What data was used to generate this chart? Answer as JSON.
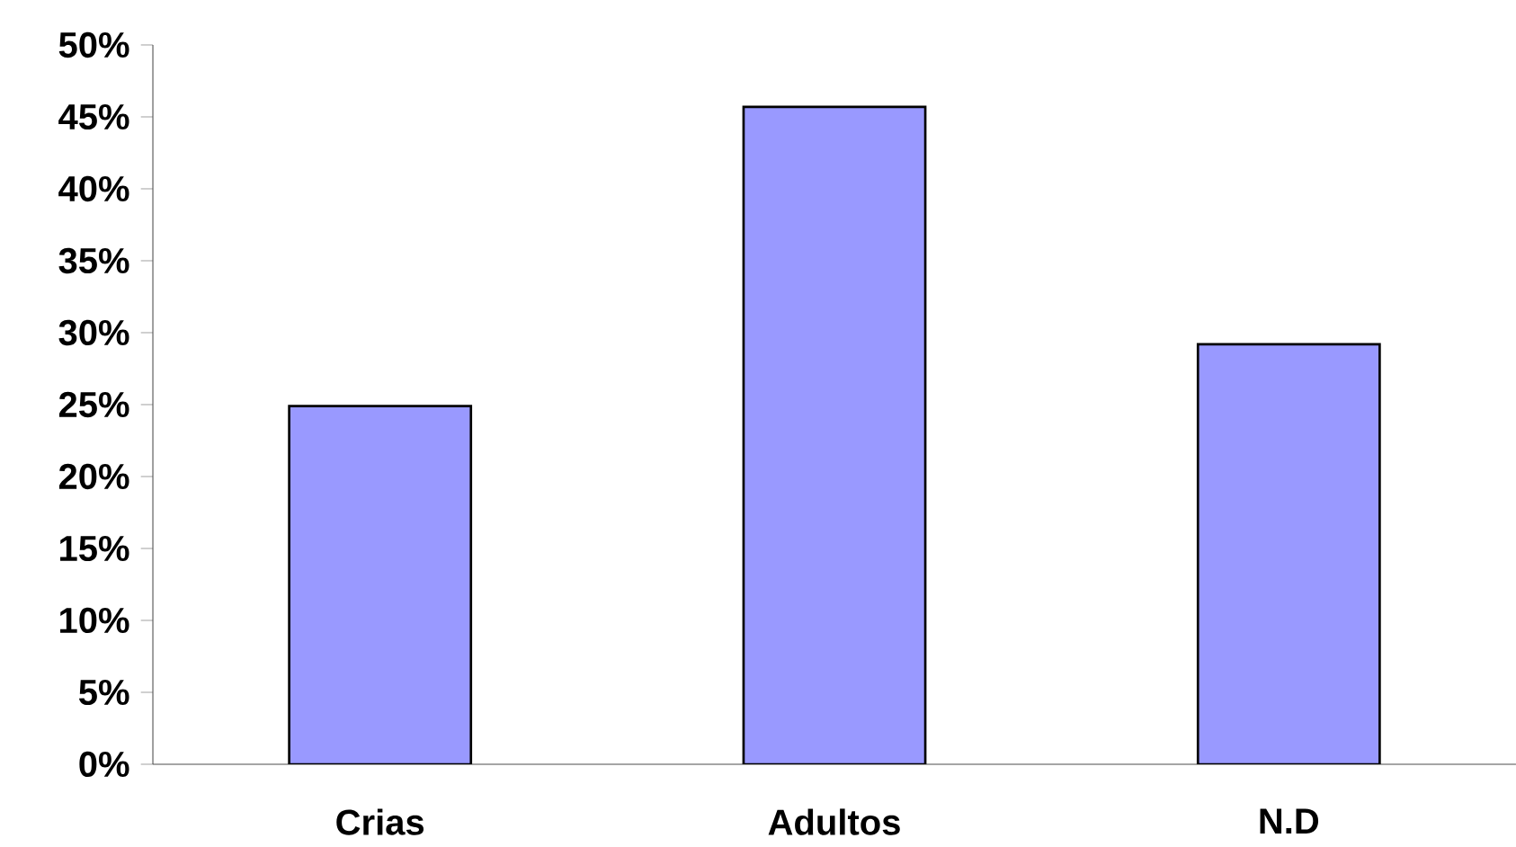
{
  "chart_data": {
    "type": "bar",
    "categories": [
      "Crias",
      "Adultos",
      "N.D"
    ],
    "values": [
      24.9,
      45.7,
      29.2
    ],
    "color": "#9999ff",
    "ylim": [
      0,
      50
    ],
    "yticks": [
      {
        "value": 0,
        "label": "0%"
      },
      {
        "value": 5,
        "label": "5%"
      },
      {
        "value": 10,
        "label": "10%"
      },
      {
        "value": 15,
        "label": "15%"
      },
      {
        "value": 20,
        "label": "20%"
      },
      {
        "value": 25,
        "label": "25%"
      },
      {
        "value": 30,
        "label": "30%"
      },
      {
        "value": 35,
        "label": "35%"
      },
      {
        "value": 40,
        "label": "40%"
      },
      {
        "value": 45,
        "label": "45%"
      },
      {
        "value": 50,
        "label": "50%"
      }
    ]
  }
}
